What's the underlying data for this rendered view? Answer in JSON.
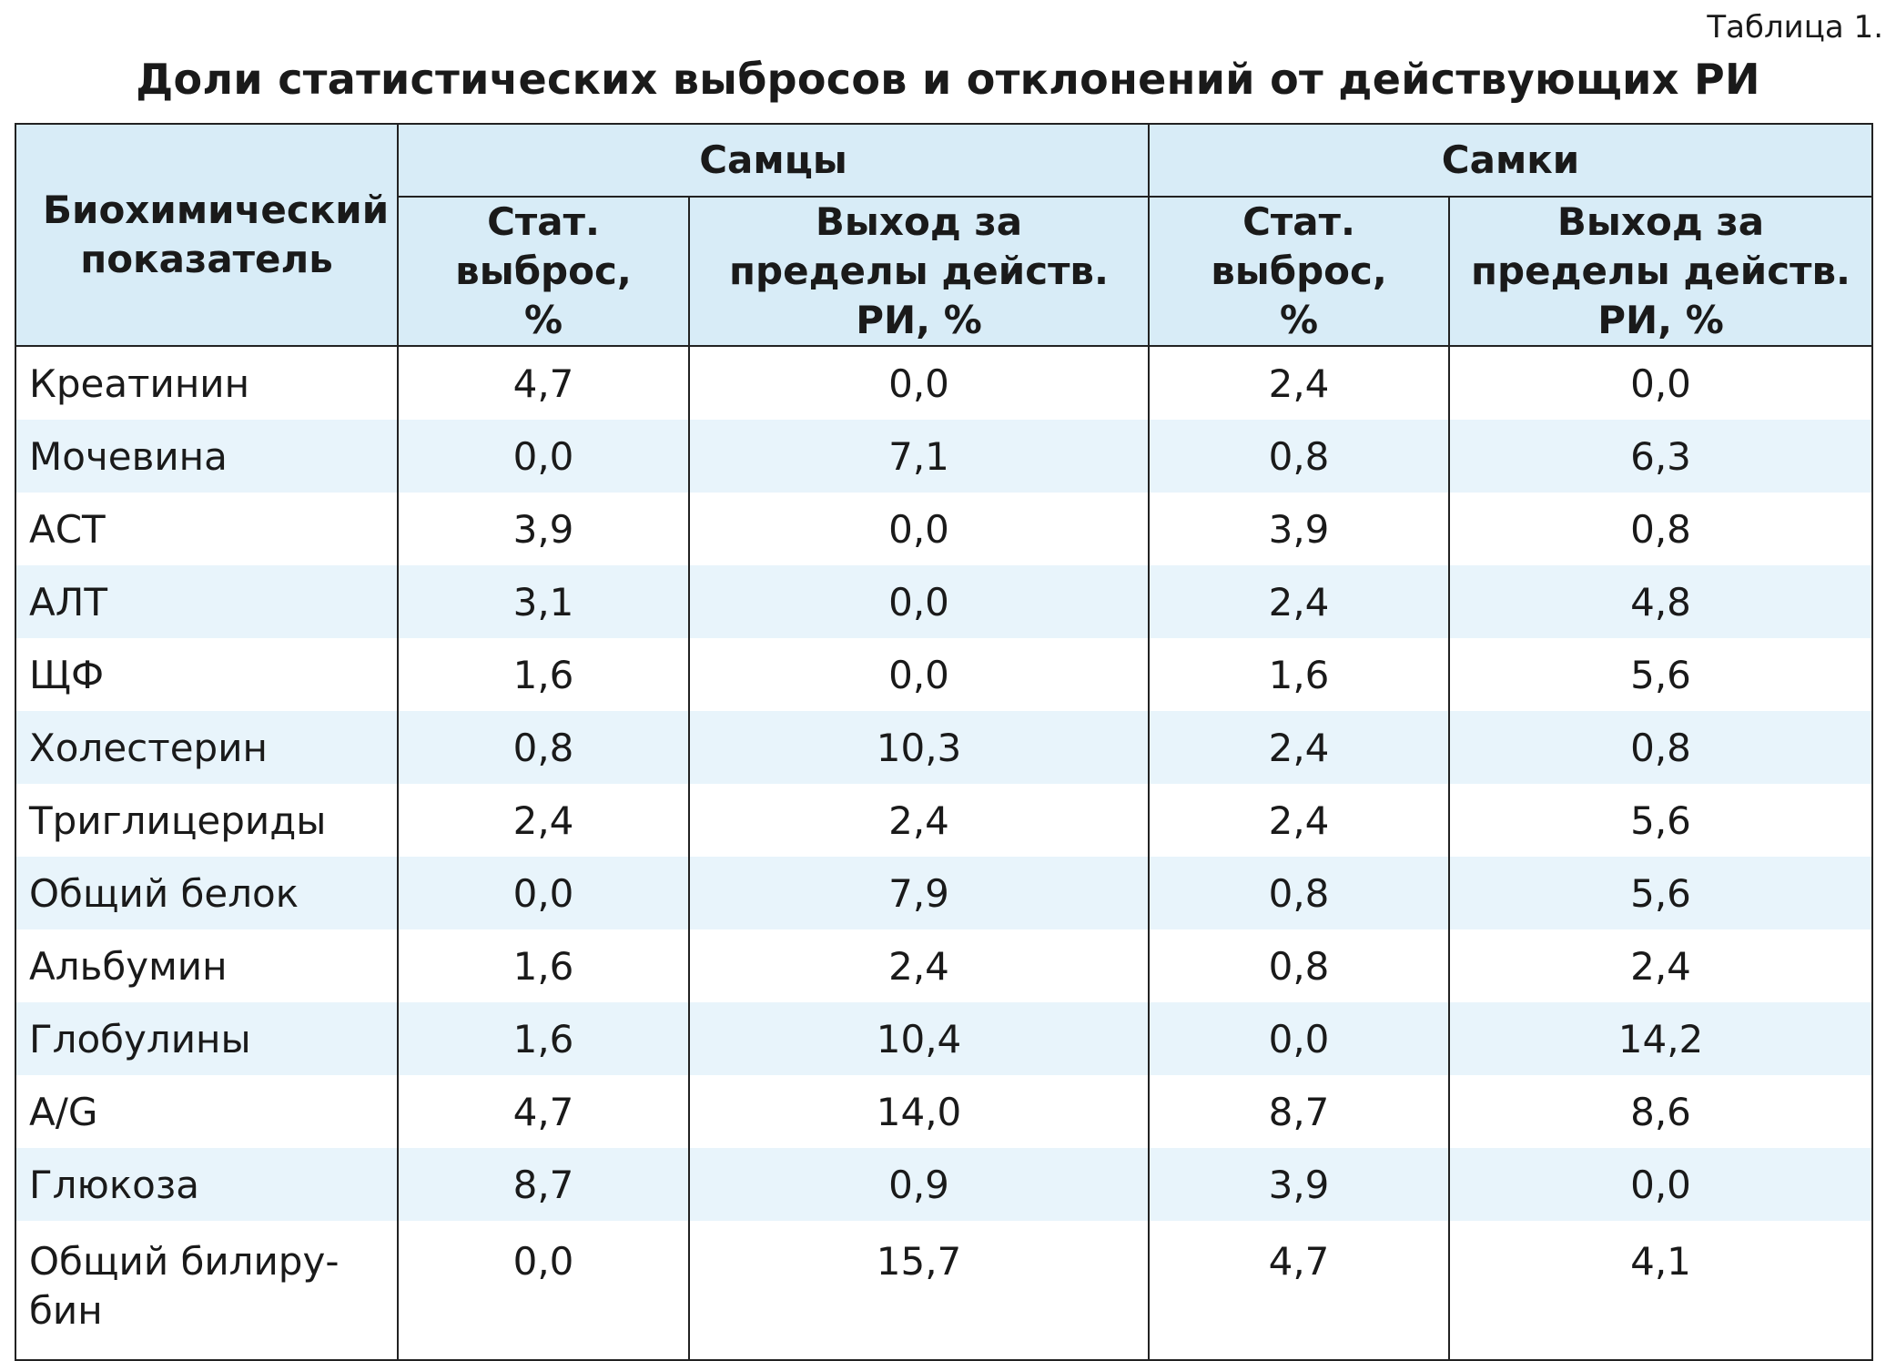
{
  "table_number": "Таблица 1.",
  "title": "Доли статистических выбросов и отклонений от действующих РИ",
  "header": {
    "param": "Биохимический показатель",
    "group_males": "Самцы",
    "group_females": "Самки",
    "stat_outlier": "Стат. выброс, %",
    "out_of_range": "Выход за пределы действ. РИ, %"
  },
  "rows": [
    {
      "name": "Креатинин",
      "m_out": "4,7",
      "m_ri": "0,0",
      "f_out": "2,4",
      "f_ri": "0,0"
    },
    {
      "name": "Мочевина",
      "m_out": "0,0",
      "m_ri": "7,1",
      "f_out": "0,8",
      "f_ri": "6,3"
    },
    {
      "name": "АСТ",
      "m_out": "3,9",
      "m_ri": "0,0",
      "f_out": "3,9",
      "f_ri": "0,8"
    },
    {
      "name": "АЛТ",
      "m_out": "3,1",
      "m_ri": "0,0",
      "f_out": "2,4",
      "f_ri": "4,8"
    },
    {
      "name": "ЩФ",
      "m_out": "1,6",
      "m_ri": "0,0",
      "f_out": "1,6",
      "f_ri": "5,6"
    },
    {
      "name": "Холестерин",
      "m_out": "0,8",
      "m_ri": "10,3",
      "f_out": "2,4",
      "f_ri": "0,8"
    },
    {
      "name": "Триглицериды",
      "m_out": "2,4",
      "m_ri": "2,4",
      "f_out": "2,4",
      "f_ri": "5,6"
    },
    {
      "name": "Общий белок",
      "m_out": "0,0",
      "m_ri": "7,9",
      "f_out": "0,8",
      "f_ri": "5,6"
    },
    {
      "name": "Альбумин",
      "m_out": "1,6",
      "m_ri": "2,4",
      "f_out": "0,8",
      "f_ri": "2,4"
    },
    {
      "name": "Глобулины",
      "m_out": "1,6",
      "m_ri": "10,4",
      "f_out": "0,0",
      "f_ri": "14,2"
    },
    {
      "name": "A/G",
      "m_out": "4,7",
      "m_ri": "14,0",
      "f_out": "8,7",
      "f_ri": "8,6"
    },
    {
      "name": "Глюкоза",
      "m_out": "8,7",
      "m_ri": "0,9",
      "f_out": "3,9",
      "f_ri": "0,0"
    },
    {
      "name": "Общий билиру-\nбин",
      "m_out": "0,0",
      "m_ri": "15,7",
      "f_out": "4,7",
      "f_ri": "4,1"
    }
  ]
}
